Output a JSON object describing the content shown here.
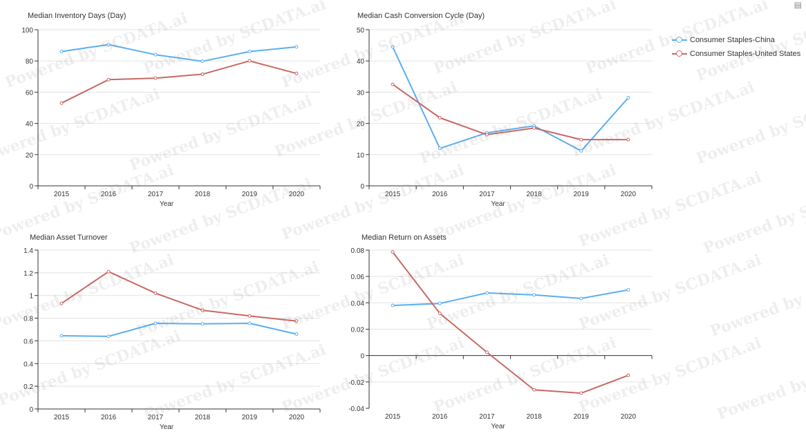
{
  "watermark_text": "Powered by SCDATA.ai",
  "toolbar": {
    "data_view_icon": "data-view-icon"
  },
  "legend": [
    {
      "name": "Consumer Staples-China",
      "color": "#5aaef0"
    },
    {
      "name": "Consumer Staples-United States",
      "color": "#c96763"
    }
  ],
  "chart_data": [
    {
      "type": "line",
      "title": "Median Inventory Days (Day)",
      "xlabel": "Year",
      "ylabel": "",
      "categories": [
        "2015",
        "2016",
        "2017",
        "2018",
        "2019",
        "2020"
      ],
      "ylim": [
        0,
        100
      ],
      "yticks": [
        0,
        20,
        40,
        60,
        80,
        100
      ],
      "ytick_labels": [
        "0",
        "20",
        "40",
        "60",
        "80",
        "100"
      ],
      "series": [
        {
          "name": "Consumer Staples-China",
          "values": [
            86,
            90.5,
            84,
            79.8,
            86,
            89
          ]
        },
        {
          "name": "Consumer Staples-United States",
          "values": [
            53,
            68,
            69,
            71.5,
            80,
            72
          ]
        }
      ]
    },
    {
      "type": "line",
      "title": "Median Cash Conversion Cycle (Day)",
      "xlabel": "Year",
      "ylabel": "",
      "categories": [
        "2015",
        "2016",
        "2017",
        "2018",
        "2019",
        "2020"
      ],
      "ylim": [
        0,
        50
      ],
      "yticks": [
        0,
        10,
        20,
        30,
        40,
        50
      ],
      "ytick_labels": [
        "0",
        "10",
        "20",
        "30",
        "40",
        "50"
      ],
      "series": [
        {
          "name": "Consumer Staples-China",
          "values": [
            44.5,
            12,
            17,
            19.2,
            11.2,
            28.2
          ]
        },
        {
          "name": "Consumer Staples-United States",
          "values": [
            32.5,
            21.8,
            16.4,
            18.5,
            14.8,
            14.8
          ]
        }
      ]
    },
    {
      "type": "line",
      "title": "Median Asset Turnover",
      "xlabel": "Year",
      "ylabel": "",
      "categories": [
        "2015",
        "2016",
        "2017",
        "2018",
        "2019",
        "2020"
      ],
      "ylim": [
        0,
        1.4
      ],
      "yticks": [
        0,
        0.2,
        0.4,
        0.6,
        0.8,
        1,
        1.2,
        1.4
      ],
      "ytick_labels": [
        "0",
        "0.2",
        "0.4",
        "0.6",
        "0.8",
        "1",
        "1.2",
        "1.4"
      ],
      "series": [
        {
          "name": "Consumer Staples-China",
          "values": [
            0.645,
            0.64,
            0.755,
            0.75,
            0.755,
            0.66
          ]
        },
        {
          "name": "Consumer Staples-United States",
          "values": [
            0.93,
            1.21,
            1.02,
            0.87,
            0.82,
            0.775
          ]
        }
      ]
    },
    {
      "type": "line",
      "title": "Median Return on Assets",
      "xlabel": "Year",
      "ylabel": "",
      "categories": [
        "2015",
        "2016",
        "2017",
        "2018",
        "2019",
        "2020"
      ],
      "ylim": [
        -0.04,
        0.08
      ],
      "yticks": [
        -0.04,
        -0.02,
        0,
        0.02,
        0.04,
        0.06,
        0.08
      ],
      "ytick_labels": [
        "-0.04",
        "-0.02",
        "0",
        "0.02",
        "0.04",
        "0.06",
        "0.08"
      ],
      "series": [
        {
          "name": "Consumer Staples-China",
          "values": [
            0.038,
            0.0395,
            0.0475,
            0.046,
            0.0433,
            0.0498
          ]
        },
        {
          "name": "Consumer Staples-United States",
          "values": [
            0.0785,
            0.032,
            0.0025,
            -0.026,
            -0.0285,
            -0.015
          ]
        }
      ]
    }
  ]
}
